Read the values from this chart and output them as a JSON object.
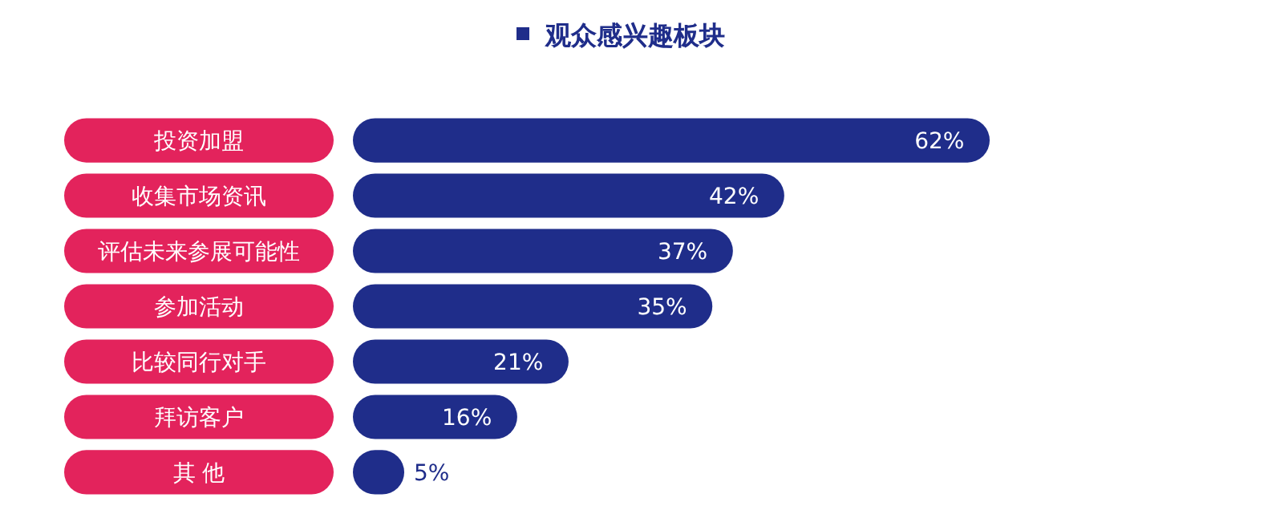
{
  "chart_data": {
    "type": "bar",
    "orientation": "horizontal",
    "legend": "top",
    "categories": [
      "投资加盟",
      "收集市场资讯",
      "评估未来参展可能性",
      "参加活动",
      "比较同行对手",
      "拜访客户",
      "其 他"
    ],
    "series": [
      {
        "name": "观众感兴趣板块",
        "color": "#1f2d8a",
        "values": [
          62,
          42,
          37,
          35,
          21,
          16,
          5
        ],
        "value_labels": [
          "62%",
          "42%",
          "37%",
          "35%",
          "21%",
          "16%",
          "5%"
        ]
      }
    ]
  }
}
